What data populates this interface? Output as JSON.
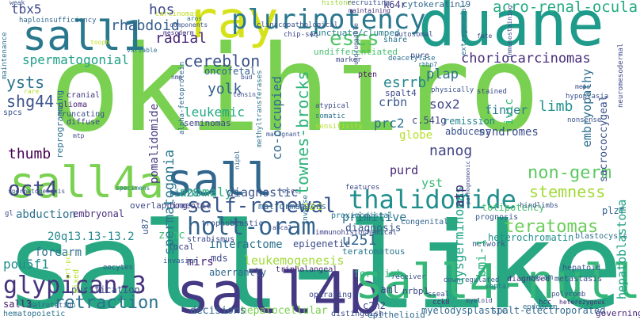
{
  "words": {
    "sall_like": {
      "text": "sall-like",
      "color": "#27a882"
    },
    "okihiro": {
      "text": "okihiro",
      "color": "#7ad151"
    },
    "duane": {
      "text": "duane",
      "color": "#1e9b8a"
    },
    "ray": {
      "text": "ray",
      "color": "#d5e21a"
    },
    "sall1": {
      "text": "sall1",
      "color": "#2a788e"
    },
    "sall4b": {
      "text": "sall4b",
      "color": "#443983"
    },
    "sall4_null": {
      "text": "sall4-null",
      "color": "#35b779"
    },
    "sall": {
      "text": "sall",
      "color": "#31688e"
    },
    "sall4a": {
      "text": "sall4a",
      "color": "#7ad151"
    },
    "pluripotency": {
      "text": "pluripotency",
      "color": "#2a788e"
    },
    "thalidomide": {
      "text": "thalidomide",
      "color": "#218f8d"
    },
    "glypican_3": {
      "text": "glypican-3",
      "color": "#46337e"
    },
    "holt_oram": {
      "text": "holt-oram",
      "color": "#33638d"
    },
    "self_renewal": {
      "text": "self-renewal",
      "color": "#39568c"
    },
    "oct4": {
      "text": "oct4",
      "color": "#404688"
    },
    "teratomas": {
      "text": "teratomas",
      "color": "#6ccd5a"
    },
    "escs": {
      "text": "escs",
      "color": "#52c569"
    },
    "acro_renal_ocular": {
      "text": "acro-renal-ocular",
      "color": "#25ab82"
    },
    "choriocarcinomas": {
      "text": "choriocarcinomas",
      "color": "#472d7b"
    },
    "non_germ": {
      "text": "non-germ",
      "color": "#5ec962"
    },
    "retraction": {
      "text": "retraction",
      "color": "#2c728e"
    },
    "spermatogonial": {
      "text": "spermatogonial",
      "color": "#1f9f88"
    },
    "rhabdoid": {
      "text": "rhabdoid",
      "color": "#355f8d"
    },
    "hos": {
      "text": "hos",
      "color": "#3e4a89"
    },
    "cereblon": {
      "text": "cereblon",
      "color": "#3b528b"
    },
    "radial": {
      "text": "radial",
      "color": "#482878"
    },
    "yolk": {
      "text": "yolk",
      "color": "#355f8d"
    },
    "leukemic": {
      "text": "leukemic",
      "color": "#22a884"
    },
    "ysts": {
      "text": "ysts",
      "color": "#2c728e"
    },
    "shg44": {
      "text": "shg44",
      "color": "#3b528b"
    },
    "tbx5": {
      "text": "tbx5",
      "color": "#3e4a89"
    },
    "thumb": {
      "text": "thumb",
      "color": "#440154"
    },
    "sall3": {
      "text": "sall3",
      "color": "#481769"
    },
    "pou5f1": {
      "text": "pou5f1",
      "color": "#228d8d"
    },
    "purification": {
      "text": "purification",
      "color": "#3b528b"
    },
    "abduction": {
      "text": "abduction",
      "color": "#2c728e"
    },
    "embryonal": {
      "text": "embryonal",
      "color": "#472c7a"
    },
    "anomaly": {
      "text": "anomaly",
      "color": "#2ab07f"
    },
    "lin28": {
      "text": "lin28",
      "color": "#25848e"
    },
    "homeotic": {
      "text": "homeotic",
      "color": "#443a83"
    },
    "diagnostic": {
      "text": "diagnostic",
      "color": "#3b528b"
    },
    "interactome": {
      "text": "interactome",
      "color": "#2c728e"
    },
    "epigenetic": {
      "text": "epigenetic",
      "color": "#3d4d8a"
    },
    "zinc": {
      "text": "zinc",
      "color": "#3fbc73"
    },
    "forearm": {
      "text": "forearm",
      "color": "#2c728e"
    },
    "q20": {
      "text": "20q13.13-13.2",
      "color": "#23888e"
    },
    "mirs": {
      "text": "mirs",
      "color": "#482475"
    },
    "mds": {
      "text": "mds",
      "color": "#3e4989"
    },
    "focal": {
      "text": "focal",
      "color": "#404588"
    },
    "leukemogenesis": {
      "text": "leukemogenesis",
      "color": "#a0da39"
    },
    "hepatocellular": {
      "text": "hepatocellular",
      "color": "#7ad151"
    },
    "decisions": {
      "text": "decisions",
      "color": "#33638d"
    },
    "aberrantly": {
      "text": "aberrantly",
      "color": "#31688e"
    },
    "spermatogonia": {
      "text": "spermatogonia",
      "color": "#2a788e"
    },
    "sac": {
      "text": "sac",
      "color": "#bddf26"
    },
    "u251": {
      "text": "u251",
      "color": "#32658e"
    },
    "primitive": {
      "text": "primitive",
      "color": "#2c738e"
    },
    "diagnosis": {
      "text": "diagnosis",
      "color": "#38598c"
    },
    "forelimb": {
      "text": "forelimb",
      "color": "#2db27d"
    },
    "nanog": {
      "text": "nanog",
      "color": "#414487"
    },
    "purd": {
      "text": "purd",
      "color": "#482677"
    },
    "yst": {
      "text": "yst",
      "color": "#3aba76"
    },
    "sox2": {
      "text": "sox2",
      "color": "#3f4788"
    },
    "esrrb": {
      "text": "esrrb",
      "color": "#24868e"
    },
    "plap": {
      "text": "plap",
      "color": "#2d718e"
    },
    "crbn": {
      "text": "crbn",
      "color": "#39568c"
    },
    "prc2": {
      "text": "prc2",
      "color": "#2c728e"
    },
    "globe": {
      "text": "globe",
      "color": "#b8de29"
    },
    "c541g": {
      "text": "c.541g",
      "color": "#414487"
    },
    "remission": {
      "text": "remission",
      "color": "#25838e"
    },
    "abducens": {
      "text": "abducens",
      "color": "#3b528b"
    },
    "finger": {
      "text": "finger",
      "color": "#287d8e"
    },
    "syndromes": {
      "text": "syndromes",
      "color": "#3c4f8a"
    },
    "limb": {
      "text": "limb",
      "color": "#21918c"
    },
    "ivic": {
      "text": "ivic",
      "color": "#31b57b"
    },
    "stemness": {
      "text": "stemness",
      "color": "#a2da37"
    },
    "plzf": {
      "text": "plzf",
      "color": "#34618d"
    },
    "aml": {
      "text": "aml",
      "color": "#3e4989"
    },
    "c2h2": {
      "text": "c2h2",
      "color": "#3f4889"
    },
    "myelodysplastic": {
      "text": "myelodysplastic",
      "color": "#306a8e"
    },
    "epithelioid": {
      "text": "epithelioid",
      "color": "#31688e"
    },
    "spalt_electroporated": {
      "text": "spalt-electroporated",
      "color": "#31688e"
    },
    "townes_brocks": {
      "text": "townes-brocks",
      "color": "#2fb47c"
    },
    "co_occupied": {
      "text": "co-occupied",
      "color": "#306a8e"
    },
    "pomalidomide": {
      "text": "pomalidomide",
      "color": "#453781"
    },
    "dysgerminomas": {
      "text": "dysgerminomas",
      "color": "#20a486"
    },
    "bmi_1": {
      "text": "bmi-1",
      "color": "#2ab07f"
    },
    "hepatoblastoma": {
      "text": "hepatoblastoma",
      "color": "#1fa287"
    },
    "embryopathy": {
      "text": "embryopathy",
      "color": "#2e6f8e"
    },
    "sacrococcygeal": {
      "text": "sacrococcygeal",
      "color": "#3b528b"
    },
    "atp": {
      "text": "atp",
      "color": "#472a7a"
    },
    "k64r": {
      "text": "k64r",
      "color": "#443b84"
    },
    "cytokeratin19": {
      "text": "cytokeratin19",
      "color": "#31688e"
    },
    "undifferentiated": {
      "text": "undifferentiated",
      "color": "#46c06f"
    },
    "punctuate": {
      "text": "punctuate/clumped",
      "color": "#287c8e"
    },
    "oncofetal": {
      "text": "oncofetal",
      "color": "#34618d"
    },
    "seminomas": {
      "text": "seminomas",
      "color": "#3e4989"
    },
    "teratomatous": {
      "text": "teratomatous",
      "color": "#2a788e"
    },
    "heterochromatin": {
      "text": "heterochromatin",
      "color": "#21908d"
    },
    "totipotency": {
      "text": "totipotency",
      "color": "#4ac16d"
    },
    "nrbp1": {
      "text": "nrbp1",
      "color": "#3e4989"
    },
    "malformations": {
      "text": "malformations",
      "color": "#31688e"
    },
    "overlapping": {
      "text": "overlapping",
      "color": "#3e4989"
    },
    "trophoblastic": {
      "text": "trophoblastic",
      "color": "#3b528b"
    },
    "triphalangeal": {
      "text": "triphalangeal",
      "color": "#482878"
    },
    "strabismus": {
      "text": "strabismus",
      "color": "#3e4a89"
    },
    "immunohisto": {
      "text": "immunohistochemical",
      "color": "#3f4788"
    },
    "proximodistal": {
      "text": "proximodistal",
      "color": "#2a778e"
    },
    "congenital": {
      "text": "congenital",
      "color": "#32648e"
    },
    "prognosis": {
      "text": "prognosis",
      "color": "#38588c"
    },
    "hindlimbs": {
      "text": "hindlimbs",
      "color": "#3b528b"
    },
    "blastocysts": {
      "text": "blastocysts",
      "color": "#2c728e"
    },
    "network": {
      "text": "network",
      "color": "#3b528b"
    },
    "diagnosed": {
      "text": "diagnosed",
      "color": "#46327e"
    },
    "metastasis": {
      "text": "metastasis",
      "color": "#3d4e8a"
    },
    "hepatoid": {
      "text": "hepatoid",
      "color": "#38588c"
    },
    "epcam": {
      "text": "epcam",
      "color": "#31688e"
    },
    "polycomb": {
      "text": "polycomb",
      "color": "#3b528b"
    },
    "heterozygous": {
      "text": "heterozygous",
      "color": "#482576"
    },
    "hcc": {
      "text": "hcc",
      "color": "#453882"
    },
    "endoderm": {
      "text": "endoderm",
      "color": "#2c728e"
    },
    "governing": {
      "text": "governing",
      "color": "#482677"
    },
    "septal": {
      "text": "septal",
      "color": "#2a788e"
    },
    "downregulated": {
      "text": "downregulated",
      "color": "#34618d"
    },
    "receiver": {
      "text": "receiver",
      "color": "#39568c"
    },
    "operating": {
      "text": "operating",
      "color": "#3e4a89"
    },
    "sseal": {
      "text": "sseal",
      "color": "#3e4989"
    },
    "cck8": {
      "text": "cck8",
      "color": "#472d7b"
    },
    "distinguish": {
      "text": "distinguish",
      "color": "#3d4d8a"
    },
    "oocytes": {
      "text": "oocytes",
      "color": "#3b528b"
    },
    "invasion": {
      "text": "invasion",
      "color": "#38598c"
    },
    "malrotation": {
      "text": "malrotation",
      "color": "#33638d"
    },
    "hematopoietic": {
      "text": "hematopoietic",
      "color": "#2c728e"
    },
    "mixed": {
      "text": "mixed",
      "color": "#b5de2b"
    },
    "grt_pcr": {
      "text": "grt-pcr",
      "color": "#b5de2b"
    },
    "u87": {
      "text": "u87",
      "color": "#39568c"
    },
    "features": {
      "text": "features",
      "color": "#3e4a89"
    },
    "escc": {
      "text": "escc",
      "color": "#3b528b"
    },
    "inverse": {
      "text": "inverse",
      "color": "#2c728e"
    },
    "specimens": {
      "text": "specimens",
      "color": "#2a788e"
    },
    "spermatogenesis": {
      "text": "spermatogenesis",
      "color": "#3b528b"
    },
    "gl": {
      "text": "gl",
      "color": "#3e4a89"
    },
    "glioma": {
      "text": "glioma",
      "color": "#482475"
    },
    "truncating": {
      "text": "truncating",
      "color": "#3b528b"
    },
    "diffuse": {
      "text": "diffuse",
      "color": "#3e4989"
    },
    "cranial": {
      "text": "cranial",
      "color": "#443983"
    },
    "spcs": {
      "text": "spcs",
      "color": "#3b528b"
    },
    "reprogramming": {
      "text": "reprogramming",
      "color": "#2c728e"
    },
    "rare": {
      "text": "rare",
      "color": "#b8de29"
    },
    "maintenance": {
      "text": "maintenance",
      "color": "#2c728e"
    },
    "haploinsufficiency": {
      "text": "haploinsufficiency",
      "color": "#31688e"
    },
    "weak": {
      "text": "weak",
      "color": "#3b528b"
    },
    "carcinomas": {
      "text": "carcinomas",
      "color": "#c0df25"
    },
    "aros": {
      "text": "aros",
      "color": "#2c728e"
    },
    "components": {
      "text": "components",
      "color": "#3b528b"
    },
    "mesoderm": {
      "text": "mesoderm",
      "color": "#443983"
    },
    "clinicopath": {
      "text": "clinicopathological",
      "color": "#3b528b"
    },
    "histone": {
      "text": "histone",
      "color": "#9fda3a"
    },
    "chip_seq": {
      "text": "chip-seq",
      "color": "#3e4a89"
    },
    "share": {
      "text": "share",
      "color": "#2c728e"
    },
    "recruiting": {
      "text": "recruiting",
      "color": "#3b528b"
    },
    "maintaining": {
      "text": "maintaining",
      "color": "#472d7b"
    },
    "extragonadal": {
      "text": "extragonadal",
      "color": "#2c728e"
    },
    "fate": {
      "text": "fate",
      "color": "#3e4a89"
    },
    "immunostaining": {
      "text": "immunostaining",
      "color": "#3b528b"
    },
    "autosomal": {
      "text": "autosomal",
      "color": "#3b528b"
    },
    "undruggable": {
      "text": "undruggable",
      "color": "#39568c"
    },
    "marker": {
      "text": "marker",
      "color": "#3e4a89"
    },
    "deacetylase": {
      "text": "deacetylase",
      "color": "#2c728e"
    },
    "pure": {
      "text": "pure",
      "color": "#3b528b"
    },
    "rbbp7": {
      "text": "rbbp7",
      "color": "#2c728e"
    },
    "pten": {
      "text": "pten",
      "color": "#481a6c"
    },
    "alpha_feto": {
      "text": "alpha-fetoprotein",
      "color": "#31688e"
    },
    "nmp": {
      "text": "nmp",
      "color": "#3e4989"
    },
    "bud": {
      "text": "bud",
      "color": "#3b528b"
    },
    "tensin": {
      "text": "tensin",
      "color": "#3e4a89"
    },
    "methyltransferases": {
      "text": "methyltransferases",
      "color": "#2c728e"
    },
    "physically": {
      "text": "physically",
      "color": "#3b528b"
    },
    "stained": {
      "text": "stained",
      "color": "#3e4a89"
    },
    "atypical": {
      "text": "atypical",
      "color": "#3e4a89"
    },
    "somatic": {
      "text": "somatic",
      "color": "#2c728e"
    },
    "sensitivity": {
      "text": "sensitivity",
      "color": "#b5de2b"
    },
    "spalt4": {
      "text": "spalt4",
      "color": "#3e4a89"
    },
    "malignant": {
      "text": "malignant",
      "color": "#3b528b"
    },
    "nipbl": {
      "text": "nipbl",
      "color": "#31688e"
    },
    "hypoplasia": {
      "text": "hypoplasia",
      "color": "#3b528b"
    },
    "meps": {
      "text": "meps",
      "color": "#3e4a89"
    },
    "nonsense": {
      "text": "nonsense",
      "color": "#3b528b"
    },
    "neuromesodermal": {
      "text": "neuromesodermal",
      "color": "#3e4a89"
    },
    "abca3": {
      "text": "abca3",
      "color": "#3e4a89"
    },
    "tooph": {
      "text": "tooph",
      "color": "#c2df23"
    },
    "variable": {
      "text": "variable",
      "color": "#2c728e"
    },
    "mtp": {
      "text": "mtp",
      "color": "#3e4a89"
    },
    "pathognomonic": {
      "text": "pathognomonic",
      "color": "#3e4a89"
    },
    "myeloid": {
      "text": "myeloid",
      "color": "#3e4a89"
    }
  }
}
